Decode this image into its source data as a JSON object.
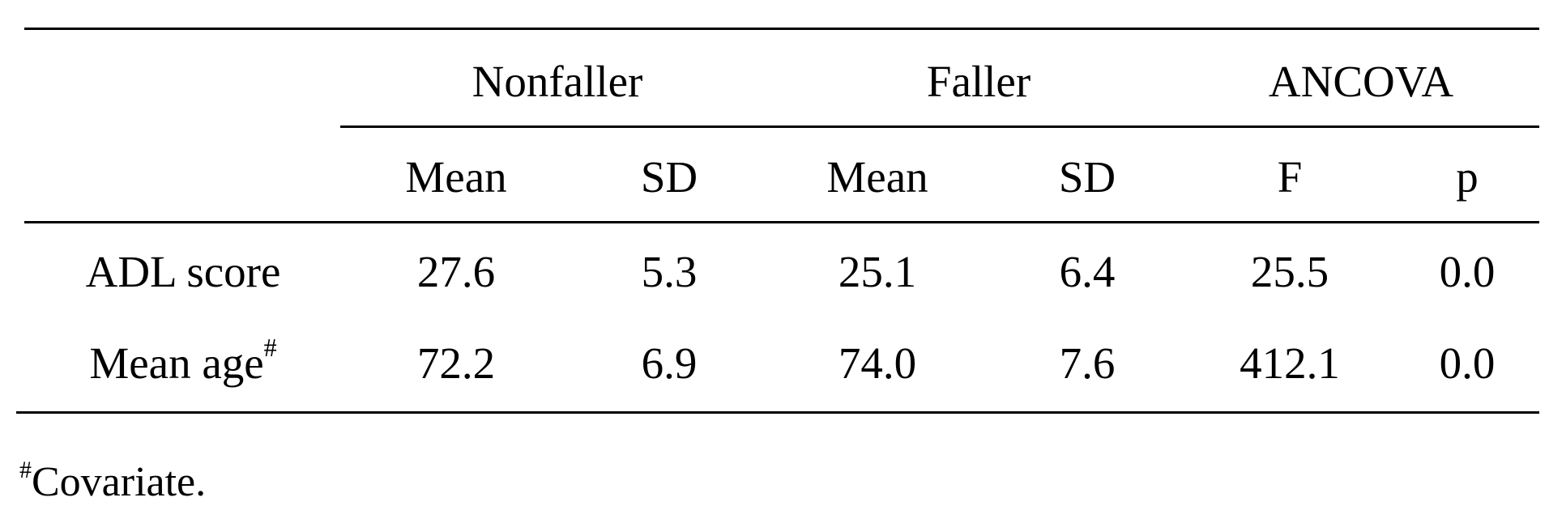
{
  "table": {
    "group_headers": {
      "nonfaller": "Nonfaller",
      "faller": "Faller",
      "ancova": "ANCOVA"
    },
    "sub_headers": {
      "nonfaller_mean": "Mean",
      "nonfaller_sd": "SD",
      "faller_mean": "Mean",
      "faller_sd": "SD",
      "ancova_f": "F",
      "ancova_p": "p"
    },
    "rows": [
      {
        "label": "ADL score",
        "label_sup": "",
        "nonfaller_mean": "27.6",
        "nonfaller_sd": "5.3",
        "faller_mean": "25.1",
        "faller_sd": "6.4",
        "f": "25.5",
        "p": "0.0"
      },
      {
        "label": "Mean age",
        "label_sup": "#",
        "nonfaller_mean": "72.2",
        "nonfaller_sd": "6.9",
        "faller_mean": "74.0",
        "faller_sd": "7.6",
        "f": "412.1",
        "p": "0.0"
      }
    ]
  },
  "footnote": {
    "marker": "#",
    "text": "Covariate."
  }
}
